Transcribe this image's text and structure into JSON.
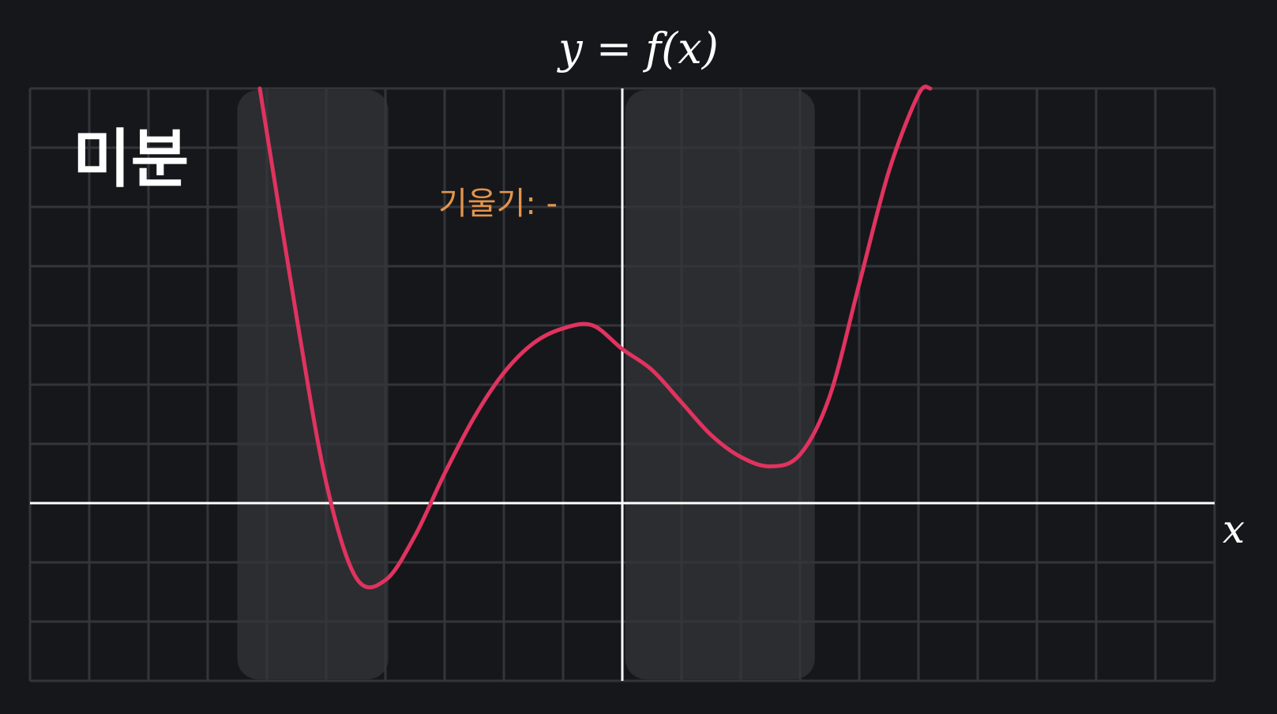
{
  "heading": "미분",
  "slope_label": "기울기: -",
  "colors": {
    "background": "#16171b",
    "grid": "#34353a",
    "axes": "#ffffff",
    "curve": "#e0335f",
    "highlight": "#2c2d31",
    "slope_text": "#e2954c"
  },
  "chart_data": {
    "type": "line",
    "title": "y = f(x)",
    "xlabel": "x",
    "ylabel": "",
    "xlim": [
      -10,
      10
    ],
    "ylim": [
      -3,
      7
    ],
    "grid": true,
    "x_axis_at_y": 0,
    "y_axis_at_x": 0,
    "series": [
      {
        "x": [
          -6.12,
          -5.5,
          -5.0,
          -4.5,
          -4.0,
          -3.5,
          -3.0,
          -2.5,
          -2.0,
          -1.5,
          -1.0,
          -0.5,
          0.0,
          0.5,
          1.0,
          1.5,
          2.0,
          2.5,
          3.0,
          3.5,
          4.0,
          4.5,
          5.0,
          5.2
        ],
        "y": [
          7.0,
          3.15,
          0.35,
          -1.25,
          -1.3,
          -0.55,
          0.5,
          1.45,
          2.2,
          2.7,
          2.95,
          3.0,
          2.6,
          2.25,
          1.7,
          1.15,
          0.78,
          0.62,
          0.82,
          1.8,
          3.7,
          5.6,
          6.9,
          7.0
        ]
      }
    ],
    "highlight_bands": [
      {
        "x0": -6.5,
        "x1": -3.95
      },
      {
        "x0": 0.05,
        "x1": 3.25
      }
    ]
  }
}
